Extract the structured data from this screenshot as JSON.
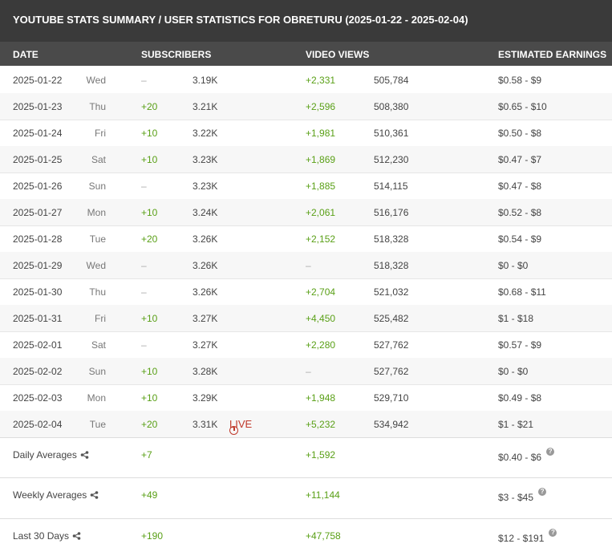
{
  "title": "YOUTUBE STATS SUMMARY / USER STATISTICS FOR OBRETURU (2025-01-22 - 2025-02-04)",
  "columns": {
    "date": "DATE",
    "subscribers": "SUBSCRIBERS",
    "video_views": "VIDEO VIEWS",
    "earnings": "ESTIMATED EARNINGS"
  },
  "rows": [
    {
      "date": "2025-01-22",
      "dow": "Wed",
      "sub_delta": "–",
      "subs": "3.19K",
      "view_delta": "+2,331",
      "views": "505,784",
      "earnings": "$0.58  -  $9"
    },
    {
      "date": "2025-01-23",
      "dow": "Thu",
      "sub_delta": "+20",
      "subs": "3.21K",
      "view_delta": "+2,596",
      "views": "508,380",
      "earnings": "$0.65  -  $10"
    },
    {
      "date": "2025-01-24",
      "dow": "Fri",
      "sub_delta": "+10",
      "subs": "3.22K",
      "view_delta": "+1,981",
      "views": "510,361",
      "earnings": "$0.50  -  $8"
    },
    {
      "date": "2025-01-25",
      "dow": "Sat",
      "sub_delta": "+10",
      "subs": "3.23K",
      "view_delta": "+1,869",
      "views": "512,230",
      "earnings": "$0.47  -  $7"
    },
    {
      "date": "2025-01-26",
      "dow": "Sun",
      "sub_delta": "–",
      "subs": "3.23K",
      "view_delta": "+1,885",
      "views": "514,115",
      "earnings": "$0.47  -  $8"
    },
    {
      "date": "2025-01-27",
      "dow": "Mon",
      "sub_delta": "+10",
      "subs": "3.24K",
      "view_delta": "+2,061",
      "views": "516,176",
      "earnings": "$0.52  -  $8"
    },
    {
      "date": "2025-01-28",
      "dow": "Tue",
      "sub_delta": "+20",
      "subs": "3.26K",
      "view_delta": "+2,152",
      "views": "518,328",
      "earnings": "$0.54  -  $9"
    },
    {
      "date": "2025-01-29",
      "dow": "Wed",
      "sub_delta": "–",
      "subs": "3.26K",
      "view_delta": "–",
      "views": "518,328",
      "earnings": "$0  -  $0"
    },
    {
      "date": "2025-01-30",
      "dow": "Thu",
      "sub_delta": "–",
      "subs": "3.26K",
      "view_delta": "+2,704",
      "views": "521,032",
      "earnings": "$0.68  -  $11"
    },
    {
      "date": "2025-01-31",
      "dow": "Fri",
      "sub_delta": "+10",
      "subs": "3.27K",
      "view_delta": "+4,450",
      "views": "525,482",
      "earnings": "$1  -  $18"
    },
    {
      "date": "2025-02-01",
      "dow": "Sat",
      "sub_delta": "–",
      "subs": "3.27K",
      "view_delta": "+2,280",
      "views": "527,762",
      "earnings": "$0.57  -  $9"
    },
    {
      "date": "2025-02-02",
      "dow": "Sun",
      "sub_delta": "+10",
      "subs": "3.28K",
      "view_delta": "–",
      "views": "527,762",
      "earnings": "$0  -  $0"
    },
    {
      "date": "2025-02-03",
      "dow": "Mon",
      "sub_delta": "+10",
      "subs": "3.29K",
      "view_delta": "+1,948",
      "views": "529,710",
      "earnings": "$0.49  -  $8"
    },
    {
      "date": "2025-02-04",
      "dow": "Tue",
      "sub_delta": "+20",
      "subs": "3.31K",
      "view_delta": "+5,232",
      "views": "534,942",
      "earnings": "$1  -  $21"
    }
  ],
  "live_label": "LIVE",
  "summaries": [
    {
      "label": "Daily Averages",
      "subs": "+7",
      "views": "+1,592",
      "earnings": "$0.40  -  $6"
    },
    {
      "label": "Weekly Averages",
      "subs": "+49",
      "views": "+11,144",
      "earnings": "$3  -  $45"
    },
    {
      "label": "Last 30 Days",
      "subs": "+190",
      "views": "+47,758",
      "earnings": "$12  -  $191"
    }
  ],
  "icons": {
    "share": "share-icon",
    "help": "help-icon",
    "live": "clock-icon"
  },
  "colors": {
    "positive": "#5aa017",
    "live": "#c0392b",
    "titlebar": "#3a3a3a",
    "header": "#4a4a4a"
  }
}
